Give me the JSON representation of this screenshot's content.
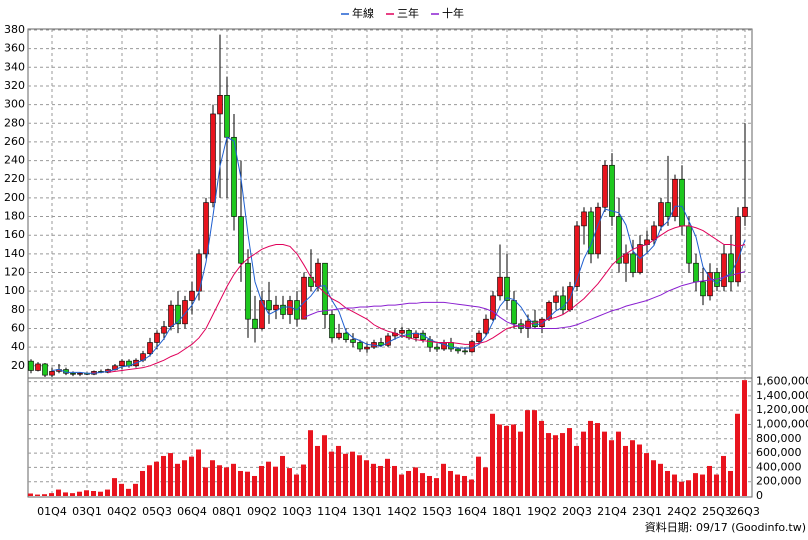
{
  "chart_data": {
    "type": "candlestick",
    "series": [
      {
        "name": "年線",
        "color": "#1f5fd0",
        "values": [
          null,
          null,
          null,
          15,
          16,
          13,
          13,
          13,
          12,
          12,
          13,
          14,
          16,
          19,
          20,
          23,
          26,
          31,
          40,
          49,
          62,
          67,
          76,
          85,
          99,
          131,
          181,
          234,
          265,
          261,
          221,
          161,
          110,
          88,
          75,
          79,
          83,
          83,
          80,
          88,
          95,
          105,
          106,
          90,
          78,
          57,
          50,
          47,
          43,
          42,
          41,
          45,
          49,
          52,
          54,
          55,
          53,
          48,
          45,
          43,
          40,
          39,
          39,
          39,
          43,
          52,
          67,
          84,
          93,
          91,
          83,
          71,
          64,
          65,
          72,
          79,
          83,
          92,
          113,
          135,
          150,
          171,
          188,
          186,
          184,
          171,
          143,
          135,
          141,
          149,
          168,
          175,
          191,
          191,
          175,
          158,
          126,
          114,
          108,
          115,
          119,
          134,
          155
        ]
      },
      {
        "name": "三年",
        "color": "#e0005a",
        "values": [
          null,
          null,
          null,
          null,
          null,
          null,
          null,
          null,
          null,
          null,
          null,
          13,
          14,
          15,
          16,
          17,
          18,
          20,
          23,
          26,
          30,
          33,
          38,
          43,
          50,
          60,
          75,
          90,
          105,
          118,
          128,
          135,
          140,
          145,
          148,
          150,
          150,
          148,
          140,
          128,
          115,
          105,
          98,
          92,
          88,
          82,
          78,
          74,
          70,
          64,
          60,
          57,
          55,
          52,
          50,
          48,
          47,
          46,
          45,
          45,
          45,
          44,
          43,
          43,
          44,
          46,
          50,
          55,
          60,
          62,
          63,
          64,
          66,
          68,
          70,
          72,
          75,
          80,
          86,
          92,
          100,
          108,
          118,
          128,
          135,
          140,
          145,
          148,
          150,
          155,
          160,
          165,
          168,
          170,
          170,
          168,
          165,
          160,
          155,
          150,
          150,
          148,
          150
        ]
      },
      {
        "name": "十年",
        "color": "#8a1fd0",
        "values": [
          null,
          null,
          null,
          null,
          null,
          null,
          null,
          null,
          null,
          null,
          null,
          null,
          null,
          null,
          null,
          null,
          null,
          null,
          null,
          null,
          null,
          null,
          null,
          null,
          null,
          null,
          null,
          null,
          null,
          null,
          null,
          null,
          null,
          null,
          null,
          null,
          null,
          null,
          null,
          72,
          75,
          78,
          79,
          80,
          81,
          82,
          82,
          83,
          83,
          84,
          84,
          85,
          85,
          86,
          87,
          87,
          88,
          88,
          88,
          88,
          87,
          86,
          85,
          84,
          83,
          81,
          78,
          72,
          67,
          64,
          62,
          61,
          60,
          60,
          60,
          60,
          61,
          62,
          64,
          67,
          70,
          73,
          76,
          79,
          81,
          84,
          86,
          88,
          90,
          93,
          96,
          100,
          103,
          106,
          108,
          110,
          111,
          112,
          113,
          115,
          117,
          119,
          121
        ]
      }
    ],
    "categories": [
      null,
      null,
      null,
      "01Q4",
      null,
      null,
      null,
      null,
      "03Q1",
      null,
      null,
      null,
      null,
      "04Q2",
      null,
      null,
      null,
      null,
      "05Q3",
      null,
      null,
      null,
      null,
      "06Q4",
      null,
      null,
      null,
      null,
      "08Q1",
      null,
      null,
      null,
      null,
      "09Q2",
      null,
      null,
      null,
      null,
      "10Q3",
      null,
      null,
      null,
      null,
      "11Q4",
      null,
      null,
      null,
      null,
      "13Q1",
      null,
      null,
      null,
      null,
      "14Q2",
      null,
      null,
      null,
      null,
      "15Q3",
      null,
      null,
      null,
      null,
      "16Q4",
      null,
      null,
      null,
      null,
      "18Q1",
      null,
      null,
      null,
      null,
      "19Q2",
      null,
      null,
      null,
      null,
      "20Q3",
      null,
      null,
      null,
      null,
      "21Q4",
      null,
      null,
      null,
      null,
      "23Q1",
      null,
      null,
      null,
      null,
      "24Q2",
      null,
      null,
      null,
      null,
      "25Q3",
      null,
      null,
      null,
      "26Q3"
    ],
    "open": [
      25,
      15,
      22,
      10,
      14,
      16,
      12,
      11,
      12,
      11,
      14,
      13,
      16,
      20,
      25,
      20,
      26,
      33,
      45,
      55,
      62,
      85,
      65,
      90,
      100,
      140,
      195,
      290,
      310,
      265,
      180,
      130,
      70,
      60,
      90,
      80,
      85,
      75,
      90,
      70,
      115,
      105,
      130,
      75,
      50,
      55,
      48,
      45,
      38,
      40,
      45,
      42,
      52,
      55,
      58,
      50,
      55,
      48,
      40,
      38,
      45,
      38,
      36,
      35,
      46,
      55,
      70,
      95,
      115,
      90,
      65,
      60,
      68,
      62,
      70,
      88,
      95,
      80,
      105,
      170,
      185,
      140,
      190,
      235,
      180,
      130,
      140,
      120,
      150,
      155,
      170,
      195,
      180,
      220,
      170,
      130,
      110,
      95,
      120,
      105,
      140,
      110,
      180
    ],
    "high": [
      27,
      24,
      23,
      18,
      22,
      18,
      14,
      13,
      13,
      15,
      16,
      17,
      22,
      27,
      27,
      28,
      36,
      50,
      58,
      68,
      90,
      100,
      95,
      110,
      145,
      200,
      300,
      375,
      330,
      290,
      240,
      145,
      95,
      100,
      110,
      95,
      95,
      95,
      100,
      120,
      145,
      135,
      130,
      80,
      65,
      60,
      55,
      48,
      45,
      48,
      50,
      55,
      60,
      62,
      60,
      58,
      58,
      52,
      44,
      48,
      50,
      40,
      40,
      48,
      58,
      75,
      100,
      150,
      140,
      100,
      70,
      75,
      80,
      72,
      90,
      100,
      105,
      110,
      175,
      190,
      190,
      195,
      240,
      248,
      200,
      150,
      155,
      160,
      165,
      175,
      200,
      245,
      225,
      235,
      180,
      140,
      125,
      130,
      125,
      150,
      160,
      190,
      280
    ],
    "low": [
      12,
      14,
      8,
      8,
      12,
      10,
      9,
      9,
      10,
      10,
      12,
      12,
      15,
      16,
      18,
      18,
      24,
      30,
      38,
      48,
      58,
      55,
      60,
      75,
      90,
      135,
      190,
      200,
      200,
      165,
      110,
      50,
      45,
      58,
      65,
      70,
      70,
      65,
      62,
      70,
      100,
      100,
      60,
      45,
      48,
      45,
      40,
      35,
      34,
      38,
      40,
      40,
      48,
      50,
      48,
      46,
      45,
      35,
      35,
      36,
      35,
      33,
      32,
      34,
      44,
      52,
      68,
      90,
      80,
      60,
      55,
      50,
      60,
      55,
      68,
      80,
      75,
      78,
      100,
      150,
      130,
      135,
      185,
      170,
      120,
      110,
      115,
      118,
      140,
      150,
      165,
      170,
      175,
      160,
      120,
      100,
      85,
      90,
      100,
      100,
      100,
      105,
      170
    ],
    "close": [
      15,
      22,
      10,
      14,
      16,
      12,
      11,
      12,
      11,
      14,
      13,
      16,
      20,
      25,
      20,
      26,
      33,
      45,
      55,
      62,
      85,
      65,
      90,
      100,
      140,
      195,
      290,
      310,
      265,
      180,
      130,
      70,
      60,
      90,
      80,
      85,
      75,
      90,
      70,
      115,
      105,
      130,
      75,
      50,
      55,
      48,
      45,
      38,
      40,
      45,
      42,
      52,
      55,
      58,
      50,
      55,
      48,
      40,
      38,
      45,
      38,
      36,
      35,
      46,
      55,
      70,
      95,
      115,
      90,
      65,
      60,
      68,
      62,
      70,
      88,
      95,
      80,
      105,
      170,
      185,
      140,
      190,
      235,
      180,
      130,
      140,
      120,
      150,
      155,
      170,
      195,
      180,
      220,
      170,
      130,
      110,
      95,
      120,
      105,
      140,
      110,
      180,
      190
    ],
    "volume": [
      35000,
      20000,
      25000,
      40000,
      90000,
      50000,
      40000,
      60000,
      80000,
      70000,
      60000,
      90000,
      250000,
      170000,
      100000,
      170000,
      350000,
      430000,
      480000,
      560000,
      600000,
      450000,
      500000,
      550000,
      650000,
      400000,
      500000,
      430000,
      400000,
      450000,
      350000,
      340000,
      280000,
      420000,
      480000,
      410000,
      560000,
      390000,
      300000,
      440000,
      920000,
      700000,
      850000,
      620000,
      700000,
      590000,
      620000,
      570000,
      500000,
      450000,
      420000,
      520000,
      420000,
      300000,
      350000,
      400000,
      320000,
      280000,
      250000,
      450000,
      350000,
      300000,
      280000,
      230000,
      550000,
      400000,
      1150000,
      1000000,
      980000,
      1000000,
      900000,
      1200000,
      1200000,
      1050000,
      880000,
      850000,
      880000,
      950000,
      700000,
      900000,
      1050000,
      1020000,
      900000,
      780000,
      900000,
      700000,
      780000,
      720000,
      600000,
      500000,
      450000,
      350000,
      300000,
      200000,
      220000,
      320000,
      300000,
      420000,
      300000,
      560000,
      350000,
      1150000,
      1620000
    ],
    "up_color": "#e8141e",
    "down_color": "#1ec81e",
    "volume_color": "#e8141e",
    "ylim": [
      8,
      380
    ],
    "yticks": [
      20,
      40,
      60,
      80,
      100,
      120,
      140,
      160,
      180,
      200,
      220,
      240,
      260,
      280,
      300,
      320,
      340,
      360,
      380
    ],
    "y2lim": [
      0,
      1650000
    ],
    "y2ticks": [
      0,
      {
        "value": 200000,
        "label": "200,000"
      },
      {
        "value": 400000,
        "label": "400,000"
      },
      {
        "value": 600000,
        "label": "600,000"
      },
      {
        "value": 800000,
        "label": "800,000"
      },
      {
        "value": 1000000,
        "label": "1,000,000"
      },
      {
        "value": 1200000,
        "label": "1,200,000"
      },
      {
        "value": 1400000,
        "label": "1,400,000"
      },
      {
        "value": 1600000,
        "label": "1,600,000"
      }
    ],
    "grid": true,
    "legend": "top",
    "note": "資料日期: 09/17 (Goodinfo.tw)"
  }
}
